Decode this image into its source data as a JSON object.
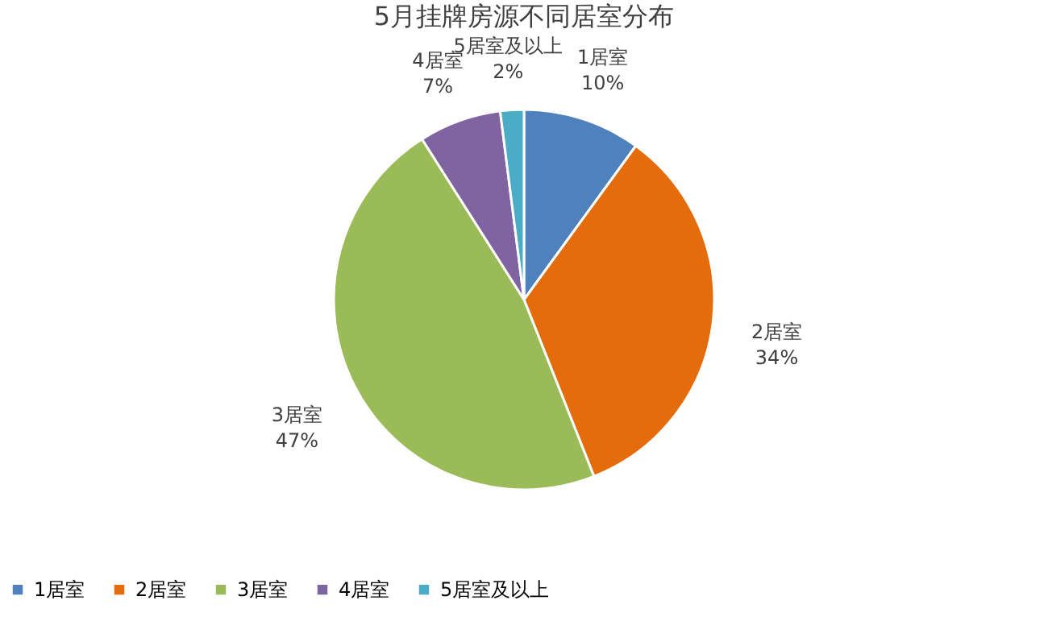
{
  "chart_data": {
    "type": "pie",
    "title": "5月挂牌房源不同居室分布",
    "categories": [
      "1居室",
      "2居室",
      "3居室",
      "4居室",
      "5居室及以上"
    ],
    "values": [
      10,
      34,
      47,
      7,
      2
    ],
    "value_labels": [
      "10%",
      "34%",
      "47%",
      "7%",
      "2%"
    ],
    "colors": [
      "#4f81bd",
      "#e46c0a",
      "#9bbb59",
      "#8064a2",
      "#4bacc6"
    ],
    "legend": "bottom"
  }
}
